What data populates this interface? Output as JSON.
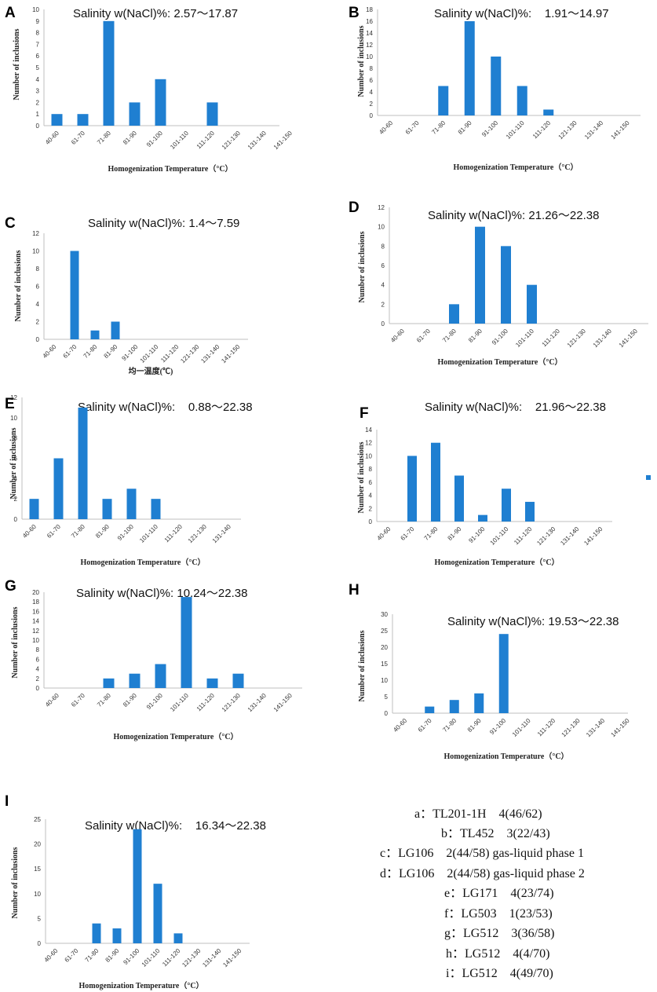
{
  "colors": {
    "bar": "#1f7fd1",
    "axis": "#bfbfbf"
  },
  "chart_data": [
    {
      "id": "A",
      "panel_label": "A",
      "type": "bar",
      "title": "Salinity w(NaCl)%: 2.57～17.87",
      "ylabel": "Number of inclusions",
      "xlabel": "Homogenization Temperature（°C）",
      "categories": [
        "40-60",
        "61-70",
        "71-80",
        "81-90",
        "91-100",
        "101-110",
        "111-120",
        "121-130",
        "131-140",
        "141-150"
      ],
      "values": [
        1,
        1,
        9,
        2,
        4,
        0,
        2,
        0,
        0,
        0
      ],
      "ylim": [
        0,
        10
      ],
      "yticks": [
        0,
        1,
        2,
        3,
        4,
        5,
        6,
        7,
        8,
        9,
        10
      ]
    },
    {
      "id": "B",
      "panel_label": "B",
      "type": "bar",
      "title": "Salinity w(NaCl)%:    1.91～14.97",
      "ylabel": "Number of inclusions",
      "xlabel": "Homogenization Temperature（°C）",
      "categories": [
        "40-60",
        "61-70",
        "71-80",
        "81-90",
        "91-100",
        "101-110",
        "111-120",
        "121-130",
        "131-140",
        "141-150"
      ],
      "values": [
        0,
        0,
        5,
        16,
        10,
        5,
        1,
        0,
        0,
        0
      ],
      "ylim": [
        0,
        18
      ],
      "yticks": [
        0,
        2,
        4,
        6,
        8,
        10,
        12,
        14,
        16,
        18
      ]
    },
    {
      "id": "C",
      "panel_label": "C",
      "type": "bar",
      "title": "Salinity w(NaCl)%: 1.4～7.59",
      "ylabel": "Number of inclusions",
      "xlabel": "均一温度(℃)",
      "categories": [
        "40-60",
        "61-70",
        "71-80",
        "81-90",
        "91-100",
        "101-110",
        "111-120",
        "121-130",
        "131-140",
        "141-150"
      ],
      "values": [
        0,
        10,
        1,
        2,
        0,
        0,
        0,
        0,
        0,
        0
      ],
      "ylim": [
        0,
        12
      ],
      "yticks": [
        0,
        2,
        4,
        6,
        8,
        10,
        12
      ]
    },
    {
      "id": "D",
      "panel_label": "D",
      "type": "bar",
      "title": "Salinity w(NaCl)%: 21.26～22.38",
      "ylabel": "Number of inclusions",
      "xlabel": "Homogenization Temperature（°C）",
      "categories": [
        "40-60",
        "61-70",
        "71-80",
        "81-90",
        "91-100",
        "101-110",
        "111-120",
        "121-130",
        "131-140",
        "141-150"
      ],
      "values": [
        0,
        0,
        2,
        10,
        8,
        4,
        0,
        0,
        0,
        0
      ],
      "ylim": [
        0,
        12
      ],
      "yticks": [
        0,
        2,
        4,
        6,
        8,
        10,
        12
      ]
    },
    {
      "id": "E",
      "panel_label": "E",
      "type": "bar",
      "title": "Salinity w(NaCl)%:    0.88～22.38",
      "ylabel": "Number of inclusions",
      "xlabel": "Homogenization Temperature（°C）",
      "categories": [
        "40-60",
        "61-70",
        "71-80",
        "81-90",
        "91-100",
        "101-110",
        "111-120",
        "121-130",
        "131-140"
      ],
      "values": [
        2,
        6,
        11,
        2,
        3,
        2,
        0,
        0,
        0
      ],
      "ylim": [
        0,
        12
      ],
      "yticks": [
        0,
        2,
        4,
        6,
        8,
        10,
        12
      ]
    },
    {
      "id": "F",
      "panel_label": "F",
      "type": "bar",
      "title": "Salinity w(NaCl)%:    21.96～22.38",
      "ylabel": "Number of inclusions",
      "xlabel": "Homogenization Temperature（°C）",
      "categories": [
        "40-60",
        "61-70",
        "71-80",
        "81-90",
        "91-100",
        "101-110",
        "111-120",
        "121-130",
        "131-140",
        "141-150"
      ],
      "values": [
        0,
        10,
        12,
        7,
        1,
        5,
        3,
        0,
        0,
        0
      ],
      "ylim": [
        0,
        14
      ],
      "yticks": [
        0,
        2,
        4,
        6,
        8,
        10,
        12,
        14
      ],
      "legend_marker": true
    },
    {
      "id": "G",
      "panel_label": "G",
      "type": "bar",
      "title": "Salinity w(NaCl)%: 10.24～22.38",
      "ylabel": "Number of inclusions",
      "xlabel": "Homogenization Temperature（°C）",
      "categories": [
        "40-60",
        "61-70",
        "71-80",
        "81-90",
        "91-100",
        "101-110",
        "111-120",
        "121-130",
        "131-140",
        "141-150"
      ],
      "values": [
        0,
        0,
        2,
        3,
        5,
        19,
        2,
        3,
        0,
        0
      ],
      "ylim": [
        0,
        20
      ],
      "yticks": [
        0,
        2,
        4,
        6,
        8,
        10,
        12,
        14,
        16,
        18,
        20
      ]
    },
    {
      "id": "H",
      "panel_label": "H",
      "type": "bar",
      "title": "Salinity w(NaCl)%: 19.53～22.38",
      "ylabel": "Number of inclusions",
      "xlabel": "Homogenization Temperature（°C）",
      "categories": [
        "40-60",
        "61-70",
        "71-80",
        "81-90",
        "91-100",
        "101-110",
        "111-120",
        "121-130",
        "131-140",
        "141-150"
      ],
      "values": [
        0,
        2,
        4,
        6,
        24,
        0,
        0,
        0,
        0,
        0
      ],
      "ylim": [
        0,
        30
      ],
      "yticks": [
        0,
        5,
        10,
        15,
        20,
        25,
        30
      ]
    },
    {
      "id": "I",
      "panel_label": "I",
      "type": "bar",
      "title": "Salinity w(NaCl)%:    16.34～22.38",
      "ylabel": "Number of inclusions",
      "xlabel": "Homogenization Temperature（°C）",
      "categories": [
        "40-60",
        "61-70",
        "71-80",
        "81-90",
        "91-100",
        "101-110",
        "111-120",
        "121-130",
        "131-140",
        "141-150"
      ],
      "values": [
        0,
        0,
        4,
        3,
        23,
        12,
        2,
        0,
        0,
        0
      ],
      "ylim": [
        0,
        25
      ],
      "yticks": [
        0,
        5,
        10,
        15,
        20,
        25
      ]
    }
  ],
  "legend": [
    "a：TL201-1H    4(46/62)",
    "b：TL452    3(22/43)",
    "c：LG106    2(44/58) gas-liquid phase 1",
    "d：LG106    2(44/58) gas-liquid phase 2",
    "e：LG171    4(23/74)",
    "f：LG503    1(23/53)",
    "g：LG512    3(36/58)",
    "h：LG512    4(4/70)",
    "i：LG512    4(49/70)"
  ]
}
